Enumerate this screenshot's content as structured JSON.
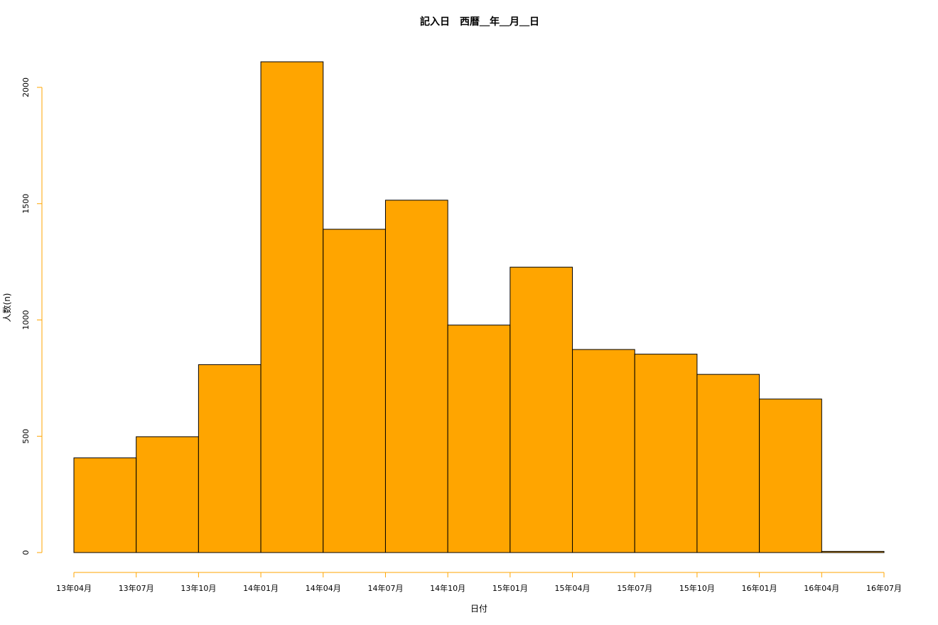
{
  "chart_data": {
    "type": "bar",
    "title": "記入日　西暦＿年＿月＿日",
    "xlabel": "日付",
    "ylabel": "人数(n)",
    "categories": [
      "13年04月",
      "13年07月",
      "13年10月",
      "14年01月",
      "14年04月",
      "14年07月",
      "14年10月",
      "15年01月",
      "15年04月",
      "15年07月",
      "15年10月",
      "16年01月",
      "16年04月"
    ],
    "x_ticks": [
      "13年04月",
      "13年07月",
      "13年10月",
      "14年01月",
      "14年04月",
      "14年07月",
      "14年10月",
      "15年01月",
      "15年04月",
      "15年07月",
      "15年10月",
      "16年01月",
      "16年04月",
      "16年07月"
    ],
    "values": [
      407,
      498,
      808,
      2110,
      1390,
      1515,
      978,
      1227,
      873,
      853,
      766,
      660,
      5
    ],
    "y_ticks": [
      "0",
      "500",
      "1000",
      "1500",
      "2000"
    ],
    "y_tick_values": [
      0,
      500,
      1000,
      1500,
      2000
    ],
    "ylim": [
      0,
      2110
    ],
    "bar_color": "#FFA500",
    "bar_edge_color": "#000000",
    "axis_color": "#FFA500",
    "grid": false
  }
}
